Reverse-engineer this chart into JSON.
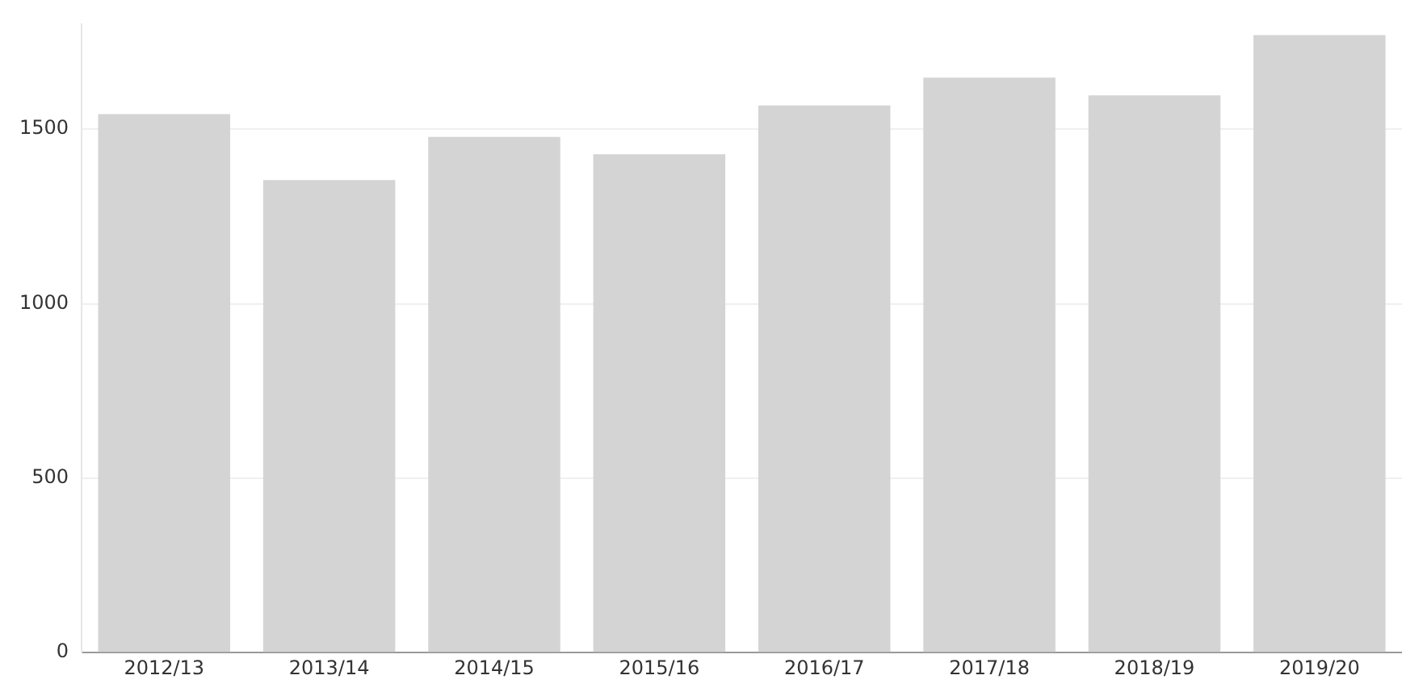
{
  "chart_data": {
    "type": "bar",
    "categories": [
      "2012/13",
      "2013/14",
      "2014/15",
      "2015/16",
      "2016/17",
      "2017/18",
      "2018/19",
      "2019/20"
    ],
    "values": [
      1543,
      1354,
      1478,
      1428,
      1568,
      1648,
      1597,
      1770
    ],
    "color": "#d4d4d4",
    "ylim": [
      0,
      1800
    ],
    "yticks": [
      0,
      500,
      1000,
      1500
    ],
    "grid": "y"
  }
}
